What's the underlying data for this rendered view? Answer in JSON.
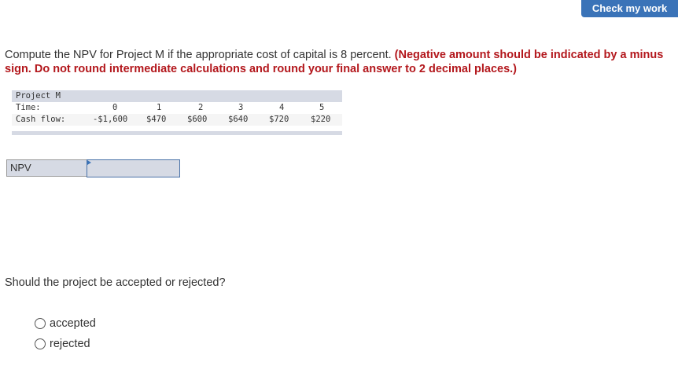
{
  "header": {
    "check_label": "Check my work"
  },
  "question": {
    "text": "Compute the NPV for Project M if the appropriate cost of capital is 8 percent.",
    "instruction": "(Negative amount should be indicated by a minus sign. Do not round intermediate calculations and round your final answer to 2 decimal places.)"
  },
  "table": {
    "title": "Project M",
    "time_label": "Time:",
    "cash_label": "Cash flow:",
    "times": [
      "0",
      "1",
      "2",
      "3",
      "4",
      "5"
    ],
    "cash_flows": [
      "-$1,600",
      "$470",
      "$600",
      "$640",
      "$720",
      "$220"
    ]
  },
  "npv": {
    "label": "NPV",
    "value": ""
  },
  "question2": {
    "text": "Should the project be accepted or rejected?",
    "options": [
      "accepted",
      "rejected"
    ]
  }
}
